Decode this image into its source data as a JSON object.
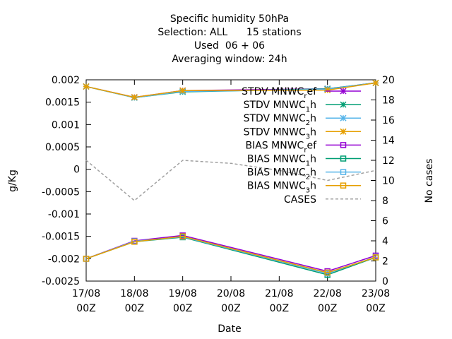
{
  "chart_data": {
    "type": "line",
    "title_lines": [
      "Specific humidity 50hPa",
      "Selection: ALL      15 stations",
      "Used  06 + 06",
      "Averaging window: 24h"
    ],
    "xlabel": "Date",
    "ylabel": "g/Kg",
    "y2label": "No cases",
    "x_ticks": [
      {
        "top": "17/08",
        "bottom": "00Z"
      },
      {
        "top": "18/08",
        "bottom": "00Z"
      },
      {
        "top": "19/08",
        "bottom": "00Z"
      },
      {
        "top": "20/08",
        "bottom": "00Z"
      },
      {
        "top": "21/08",
        "bottom": "00Z"
      },
      {
        "top": "22/08",
        "bottom": "00Z"
      },
      {
        "top": "23/08",
        "bottom": "00Z"
      }
    ],
    "y_ticks": [
      "0.002",
      "0.0015",
      "0.001",
      "0.0005",
      "0",
      "-0.0005",
      "-0.001",
      "-0.0015",
      "-0.002",
      "-0.0025"
    ],
    "y_tick_values": [
      0.002,
      0.0015,
      0.001,
      0.0005,
      0,
      -0.0005,
      -0.001,
      -0.0015,
      -0.002,
      -0.0025
    ],
    "y2_ticks": [
      "20",
      "18",
      "16",
      "14",
      "12",
      "10",
      "8",
      "6",
      "4",
      "2",
      "0"
    ],
    "y2_tick_values": [
      20,
      18,
      16,
      14,
      12,
      10,
      8,
      6,
      4,
      2,
      0
    ],
    "ylim": [
      -0.0025,
      0.002
    ],
    "y2lim": [
      0,
      20
    ],
    "xlim": [
      0,
      6
    ],
    "grid": false,
    "legend_position": "top-right",
    "series": [
      {
        "name": "STDV MNWC",
        "sub": "r",
        "tail": "ef",
        "color": "#9400d3",
        "marker": "star",
        "axis": "y1",
        "x": [
          0,
          1,
          2,
          5,
          6
        ],
        "values": [
          0.00185,
          0.00161,
          0.00176,
          0.0018,
          0.00193
        ]
      },
      {
        "name": "STDV MNWC",
        "sub": "1",
        "tail": "h",
        "color": "#009e73",
        "marker": "star",
        "axis": "y1",
        "x": [
          0,
          1,
          2,
          5,
          6
        ],
        "values": [
          0.00185,
          0.0016,
          0.00173,
          0.0018,
          0.00193
        ]
      },
      {
        "name": "STDV MNWC",
        "sub": "2",
        "tail": "h",
        "color": "#56b4e9",
        "marker": "star",
        "axis": "y1",
        "x": [
          0,
          1,
          2,
          5,
          6
        ],
        "values": [
          0.00185,
          0.0016,
          0.00174,
          0.00179,
          0.00193
        ]
      },
      {
        "name": "STDV MNWC",
        "sub": "3",
        "tail": "h",
        "color": "#e69f00",
        "marker": "star",
        "axis": "y1",
        "x": [
          0,
          1,
          2,
          5,
          6
        ],
        "values": [
          0.00185,
          0.00161,
          0.00176,
          0.00177,
          0.00193
        ]
      },
      {
        "name": "BIAS MNWC",
        "sub": "r",
        "tail": "ef",
        "color": "#9400d3",
        "marker": "square",
        "axis": "y1",
        "x": [
          0,
          1,
          2,
          5,
          6
        ],
        "values": [
          -0.002,
          -0.0016,
          -0.00148,
          -0.00228,
          -0.00193
        ]
      },
      {
        "name": "BIAS MNWC",
        "sub": "1",
        "tail": "h",
        "color": "#009e73",
        "marker": "square",
        "axis": "y1",
        "x": [
          0,
          1,
          2,
          5,
          6
        ],
        "values": [
          -0.002,
          -0.00162,
          -0.00152,
          -0.00236,
          -0.00197
        ]
      },
      {
        "name": "BIAS MNWC",
        "sub": "2",
        "tail": "h",
        "color": "#56b4e9",
        "marker": "square",
        "axis": "y1",
        "x": [
          0,
          1,
          2,
          5,
          6
        ],
        "values": [
          -0.002,
          -0.00161,
          -0.00151,
          -0.00233,
          -0.00196
        ]
      },
      {
        "name": "BIAS MNWC",
        "sub": "3",
        "tail": "h",
        "color": "#e69f00",
        "marker": "square",
        "axis": "y1",
        "x": [
          0,
          1,
          2,
          5,
          6
        ],
        "values": [
          -0.002,
          -0.00162,
          -0.0015,
          -0.00231,
          -0.00197
        ]
      },
      {
        "name": "CASES",
        "sub": "",
        "tail": "",
        "color": "#a0a0a0",
        "marker": "none",
        "dashed": true,
        "axis": "y2",
        "x": [
          0,
          1,
          2,
          3,
          4,
          5,
          6
        ],
        "values": [
          12,
          8,
          12,
          11.7,
          11,
          10,
          11
        ]
      }
    ]
  }
}
